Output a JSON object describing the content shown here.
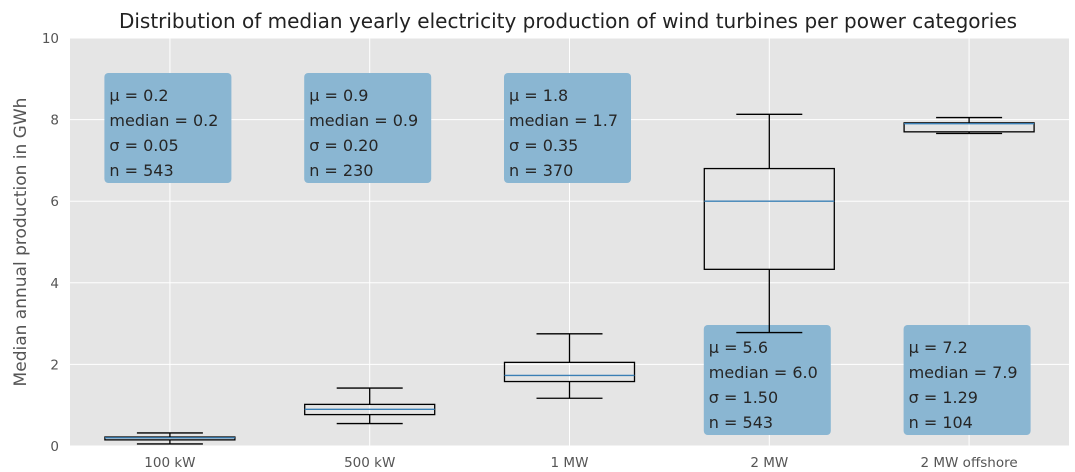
{
  "chart_data": {
    "type": "box",
    "title": "Distribution of median yearly electricity production of wind turbines per power categories",
    "xlabel": "",
    "ylabel": "Median annual production in GWh",
    "ylim": [
      0,
      10
    ],
    "yticks": [
      "0",
      "2",
      "4",
      "6",
      "8",
      "10"
    ],
    "grid": true,
    "colors": {
      "plot_background": "#e5e5e5",
      "grid": "#ffffff",
      "box": "#000000",
      "median": "#3a7fb5",
      "annotation_box": "#8ab6d2"
    },
    "categories": [
      "100 kW",
      "500 kW",
      "1 MW",
      "2 MW",
      "2 MW offshore"
    ],
    "boxes": [
      {
        "whislo": 0.05,
        "q1": 0.15,
        "med": 0.2,
        "q3": 0.22,
        "whishi": 0.32
      },
      {
        "whislo": 0.55,
        "q1": 0.77,
        "med": 0.9,
        "q3": 1.02,
        "whishi": 1.42
      },
      {
        "whislo": 1.17,
        "q1": 1.58,
        "med": 1.73,
        "q3": 2.05,
        "whishi": 2.75
      },
      {
        "whislo": 2.78,
        "q1": 4.33,
        "med": 6.0,
        "q3": 6.8,
        "whishi": 8.13
      },
      {
        "whislo": 7.66,
        "q1": 7.7,
        "med": 7.9,
        "q3": 7.92,
        "whishi": 8.05
      }
    ],
    "annotations": [
      {
        "position": "top",
        "lines": [
          "μ = 0.2",
          "median = 0.2",
          "σ = 0.05",
          "n = 543"
        ]
      },
      {
        "position": "top",
        "lines": [
          "μ = 0.9",
          "median = 0.9",
          "σ = 0.20",
          "n = 230"
        ]
      },
      {
        "position": "top",
        "lines": [
          "μ = 1.8",
          "median = 1.7",
          "σ = 0.35",
          "n = 370"
        ]
      },
      {
        "position": "bottom",
        "lines": [
          "μ = 5.6",
          "median = 6.0",
          "σ = 1.50",
          "n = 543"
        ]
      },
      {
        "position": "bottom",
        "lines": [
          "μ = 7.2",
          "median = 7.9",
          "σ = 1.29",
          "n = 104"
        ]
      }
    ]
  }
}
